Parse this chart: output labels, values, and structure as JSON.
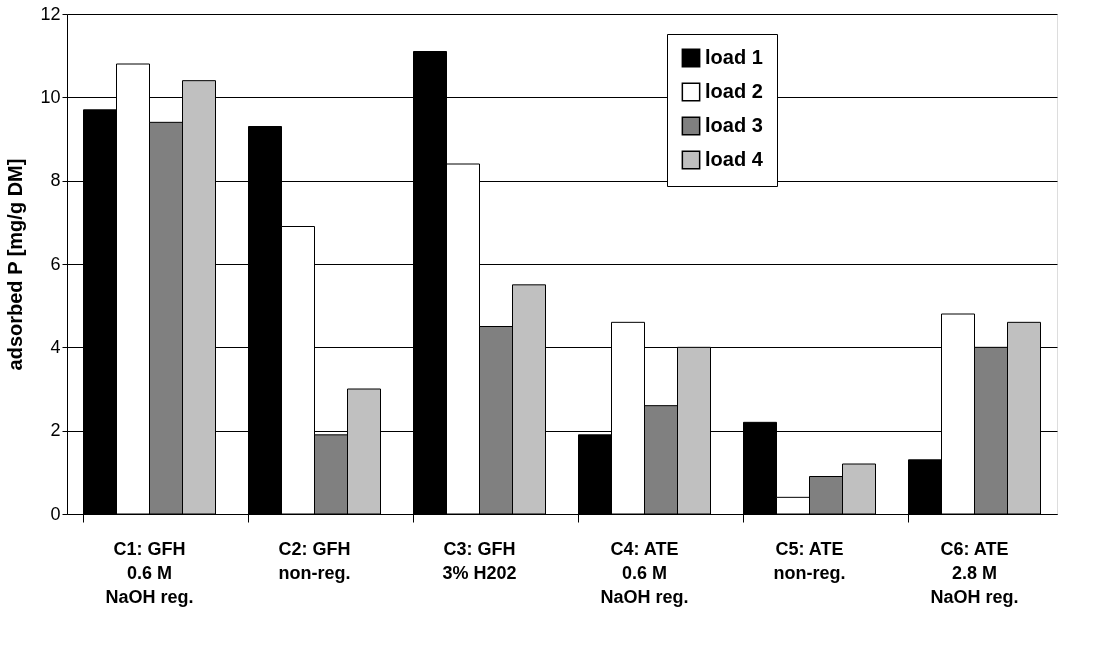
{
  "chart_data": {
    "type": "bar",
    "ylabel": "adsorbed P [mg/g DM]",
    "categories": [
      "C1: GFH\n0.6 M\nNaOH reg.",
      "C2: GFH\nnon-reg.",
      "C3: GFH\n3% H202",
      "C4: ATE\n0.6 M\nNaOH reg.",
      "C5: ATE\nnon-reg.",
      "C6: ATE\n2.8 M\nNaOH reg."
    ],
    "series": [
      {
        "name": "load 1",
        "color": "#000000",
        "values": [
          9.7,
          9.3,
          11.1,
          1.9,
          2.2,
          1.3
        ]
      },
      {
        "name": "load 2",
        "color": "#ffffff",
        "values": [
          10.8,
          6.9,
          8.4,
          4.6,
          0.4,
          4.8
        ]
      },
      {
        "name": "load 3",
        "color": "#808080",
        "values": [
          9.4,
          1.9,
          4.5,
          2.6,
          0.9,
          4.0
        ]
      },
      {
        "name": "load 4",
        "color": "#c0c0c0",
        "values": [
          10.4,
          3.0,
          5.5,
          4.0,
          1.2,
          4.6
        ]
      }
    ],
    "ylim": [
      0,
      12
    ],
    "yticks": [
      0,
      2,
      4,
      6,
      8,
      10,
      12
    ],
    "grid": "y",
    "legend": "top right"
  }
}
